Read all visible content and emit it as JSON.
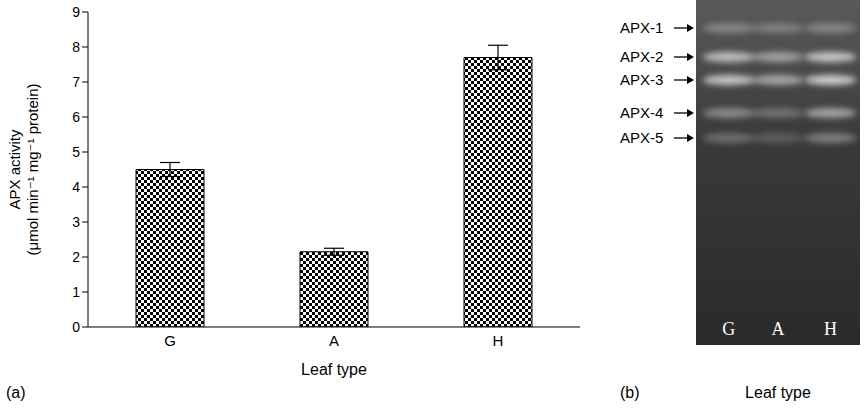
{
  "chart_data": [
    {
      "type": "bar",
      "panel": "(a)",
      "x_label": "Leaf type",
      "y_label": "APX activity (μmol min⁻¹ mg⁻¹ protein)",
      "categories": [
        "G",
        "A",
        "H"
      ],
      "values": [
        4.5,
        2.15,
        7.7
      ],
      "errors": [
        0.2,
        0.1,
        0.35
      ],
      "color": "#000000",
      "ylim": [
        0,
        9
      ],
      "yticks": [
        0,
        1,
        2,
        3,
        4,
        5,
        6,
        7,
        8,
        9
      ],
      "grid": false
    },
    {
      "type": "gel",
      "panel": "(b)",
      "x_label": "Leaf type",
      "bands": [
        "APX-1",
        "APX-2",
        "APX-3",
        "APX-4",
        "APX-5"
      ],
      "lanes": [
        "G",
        "A",
        "H"
      ]
    }
  ]
}
